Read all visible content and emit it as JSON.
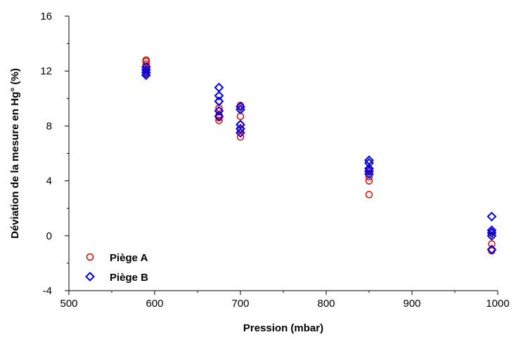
{
  "chart_data": {
    "type": "scatter",
    "title": "",
    "xlabel": "Pression (mbar)",
    "ylabel": "Déviation de la mesure en Hg° (%)",
    "xlim": [
      500,
      1000
    ],
    "ylim": [
      -4,
      16
    ],
    "x_ticks": [
      "500",
      "600",
      "700",
      "800",
      "900",
      "1000"
    ],
    "y_ticks": [
      "-4",
      "0",
      "4",
      "8",
      "12",
      "16"
    ],
    "grid": false,
    "legend_position": "bottom-left",
    "series": [
      {
        "name": "Piège A",
        "marker": "circle",
        "color": "#e00000",
        "points": [
          [
            590,
            12.8
          ],
          [
            590,
            12.7
          ],
          [
            590,
            12.5
          ],
          [
            590,
            12.3
          ],
          [
            590,
            12.0
          ],
          [
            590,
            11.8
          ],
          [
            675,
            9.8
          ],
          [
            675,
            9.3
          ],
          [
            675,
            8.8
          ],
          [
            675,
            8.6
          ],
          [
            675,
            8.4
          ],
          [
            700,
            9.5
          ],
          [
            700,
            9.2
          ],
          [
            700,
            8.7
          ],
          [
            700,
            8.1
          ],
          [
            700,
            7.7
          ],
          [
            700,
            7.2
          ],
          [
            850,
            4.8
          ],
          [
            850,
            4.5
          ],
          [
            850,
            4.3
          ],
          [
            850,
            4.0
          ],
          [
            850,
            3.0
          ],
          [
            993,
            0.3
          ],
          [
            993,
            0.0
          ],
          [
            993,
            -0.6
          ],
          [
            993,
            -1.1
          ]
        ]
      },
      {
        "name": "Piège B",
        "marker": "diamond",
        "color": "#0000dd",
        "points": [
          [
            590,
            12.3
          ],
          [
            590,
            12.1
          ],
          [
            590,
            11.9
          ],
          [
            590,
            11.7
          ],
          [
            675,
            10.8
          ],
          [
            675,
            10.2
          ],
          [
            675,
            9.8
          ],
          [
            675,
            9.1
          ],
          [
            675,
            8.7
          ],
          [
            700,
            9.4
          ],
          [
            700,
            9.2
          ],
          [
            700,
            8.1
          ],
          [
            700,
            7.8
          ],
          [
            700,
            7.5
          ],
          [
            850,
            5.5
          ],
          [
            850,
            5.3
          ],
          [
            850,
            4.9
          ],
          [
            850,
            4.7
          ],
          [
            850,
            4.5
          ],
          [
            993,
            1.4
          ],
          [
            993,
            0.4
          ],
          [
            993,
            0.2
          ],
          [
            993,
            0.0
          ],
          [
            993,
            -1.0
          ]
        ]
      }
    ]
  }
}
